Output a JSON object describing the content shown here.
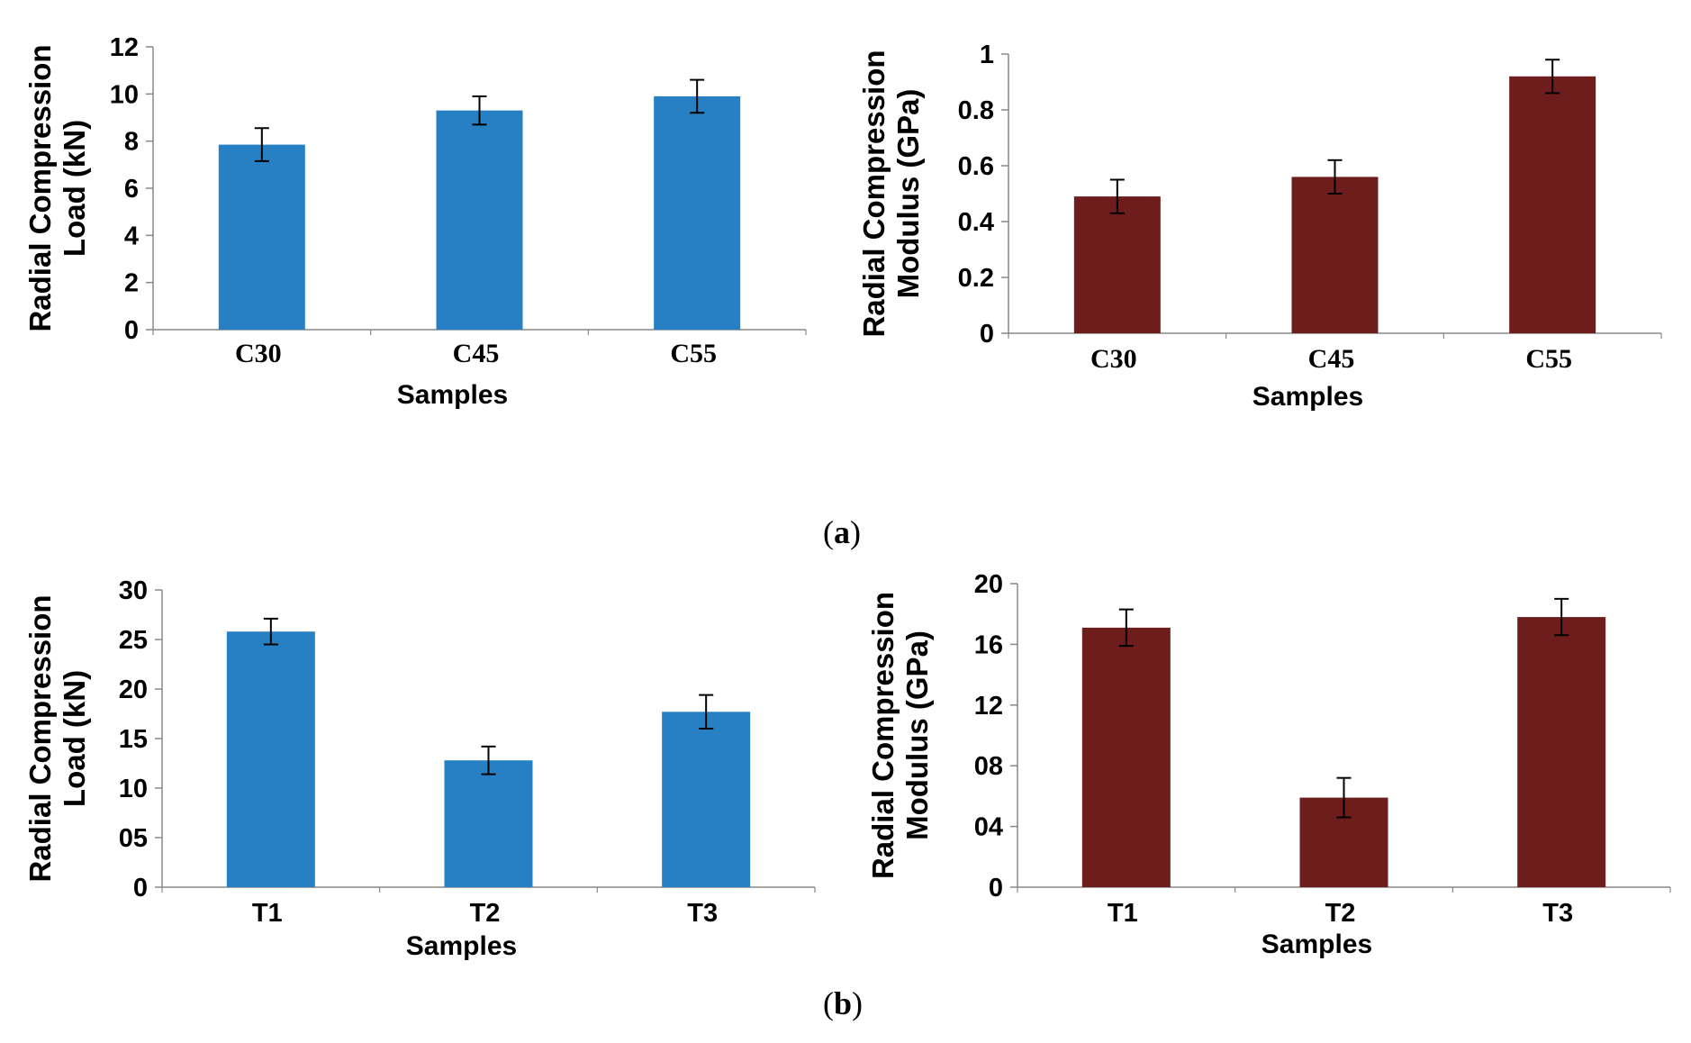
{
  "captions": {
    "a": "a",
    "b": "b"
  },
  "chart_data": [
    {
      "id": "a-load",
      "type": "bar",
      "categories": [
        "C30",
        "C45",
        "C55"
      ],
      "series": [
        {
          "values": [
            7.85,
            9.3,
            9.9
          ],
          "errors": [
            0.7,
            0.6,
            0.7
          ],
          "color": "#2780c3"
        }
      ],
      "ylabel_lines": [
        "Radial Compression",
        "Load (kN)"
      ],
      "xlabel": "Samples",
      "ylim": [
        0,
        12
      ],
      "yticks": [
        0,
        2,
        4,
        6,
        8,
        10,
        12
      ],
      "ytick_labels": [
        "0",
        "2",
        "4",
        "6",
        "8",
        "10",
        "12"
      ],
      "cat_font": "serif",
      "grid": false
    },
    {
      "id": "a-modulus",
      "type": "bar",
      "categories": [
        "C30",
        "C45",
        "C55"
      ],
      "series": [
        {
          "values": [
            0.49,
            0.56,
            0.92
          ],
          "errors": [
            0.06,
            0.06,
            0.06
          ],
          "color": "#6e1d1d"
        }
      ],
      "ylabel_lines": [
        "Radial Compression",
        "Modulus (GPa)"
      ],
      "xlabel": "Samples",
      "ylim": [
        0,
        1
      ],
      "yticks": [
        0,
        0.2,
        0.4,
        0.6,
        0.8,
        1
      ],
      "ytick_labels": [
        "0",
        "0.2",
        "0.4",
        "0.6",
        "0.8",
        "1"
      ],
      "cat_font": "serif",
      "grid": false
    },
    {
      "id": "b-load",
      "type": "bar",
      "categories": [
        "T1",
        "T2",
        "T3"
      ],
      "series": [
        {
          "values": [
            25.8,
            12.8,
            17.7
          ],
          "errors": [
            1.3,
            1.4,
            1.7
          ],
          "color": "#2780c3"
        }
      ],
      "ylabel_lines": [
        "Radial Compression",
        "Load (kN)"
      ],
      "xlabel": "Samples",
      "ylim": [
        0,
        30
      ],
      "yticks": [
        0,
        5,
        10,
        15,
        20,
        25,
        30
      ],
      "ytick_labels": [
        "0",
        "05",
        "10",
        "15",
        "20",
        "25",
        "30"
      ],
      "cat_font": "sans",
      "grid": false
    },
    {
      "id": "b-modulus",
      "type": "bar",
      "categories": [
        "T1",
        "T2",
        "T3"
      ],
      "series": [
        {
          "values": [
            17.1,
            5.9,
            17.8
          ],
          "errors": [
            1.2,
            1.3,
            1.2
          ],
          "color": "#6e1d1d"
        }
      ],
      "ylabel_lines": [
        "Radial Compression",
        "Modulus (GPa)"
      ],
      "xlabel": "Samples",
      "ylim": [
        0,
        20
      ],
      "yticks": [
        0,
        4,
        8,
        12,
        16,
        20
      ],
      "ytick_labels": [
        "0",
        "04",
        "08",
        "12",
        "16",
        "20"
      ],
      "cat_font": "sans",
      "grid": false
    }
  ]
}
